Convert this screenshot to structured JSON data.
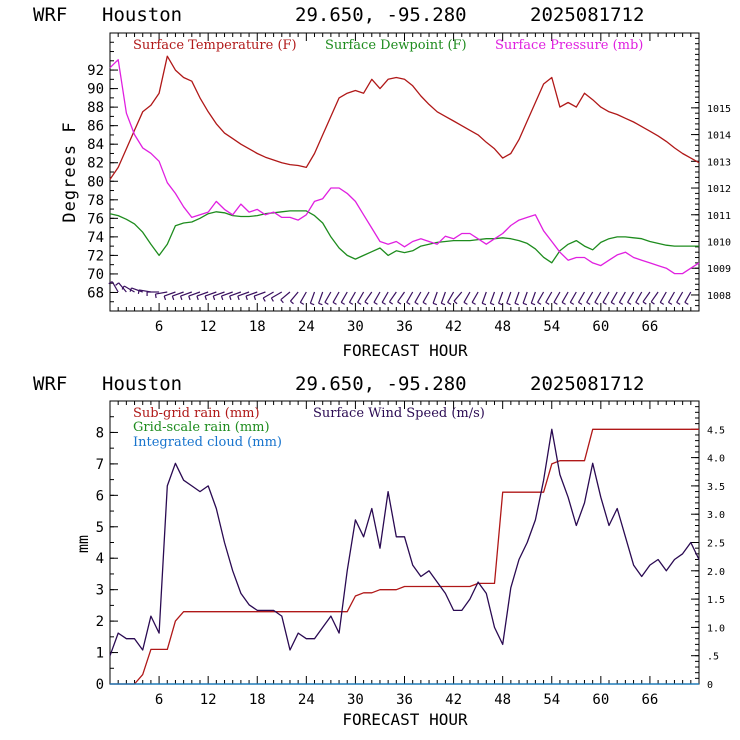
{
  "header": {
    "model": "WRF",
    "location": "Houston",
    "coords": "29.650, -95.280",
    "run": "2025081712"
  },
  "colors": {
    "temperature": "#b01818",
    "dewpoint": "#1e8c1e",
    "pressure": "#e020e0",
    "subgrid_rain": "#b01818",
    "grid_rain": "#1e8c1e",
    "cloud": "#1874cd",
    "wind_speed": "#2a0a52",
    "barb": "#3a1060"
  },
  "chart_data": [
    {
      "type": "line",
      "xlabel": "FORECAST HOUR",
      "ylabel": "Degrees F",
      "xlim": [
        0,
        72
      ],
      "ylim": [
        66,
        96
      ],
      "y2lim": [
        1007.4,
        1017.8
      ],
      "xticks": [
        "6",
        "12",
        "18",
        "24",
        "30",
        "36",
        "42",
        "48",
        "54",
        "60",
        "66"
      ],
      "yticks": [
        "68",
        "70",
        "72",
        "74",
        "76",
        "78",
        "80",
        "82",
        "84",
        "86",
        "88",
        "90",
        "92"
      ],
      "y2ticks": [
        "1008",
        "1009",
        "1010",
        "1011",
        "1012",
        "1013",
        "1014",
        "1015"
      ],
      "legend_placement": "top",
      "x": [
        0,
        1,
        2,
        3,
        4,
        5,
        6,
        7,
        8,
        9,
        10,
        11,
        12,
        13,
        14,
        15,
        16,
        17,
        18,
        19,
        20,
        21,
        22,
        23,
        24,
        25,
        26,
        27,
        28,
        29,
        30,
        31,
        32,
        33,
        34,
        35,
        36,
        37,
        38,
        39,
        40,
        41,
        42,
        43,
        44,
        45,
        46,
        47,
        48,
        49,
        50,
        51,
        52,
        53,
        54,
        55,
        56,
        57,
        58,
        59,
        60,
        61,
        62,
        63,
        64,
        65,
        66,
        67,
        68,
        69,
        70,
        71,
        72
      ],
      "series": [
        {
          "name": "Surface Temperature (F)",
          "axis": "left",
          "values": [
            80.2,
            81.5,
            83.5,
            85.5,
            87.5,
            88.2,
            89.5,
            93.5,
            92.0,
            91.2,
            90.8,
            89.0,
            87.5,
            86.2,
            85.2,
            84.6,
            84.0,
            83.5,
            83.0,
            82.6,
            82.3,
            82.0,
            81.8,
            81.7,
            81.5,
            83.0,
            85.0,
            87.0,
            89.0,
            89.5,
            89.8,
            89.5,
            91.0,
            90.0,
            91.0,
            91.2,
            91.0,
            90.3,
            89.2,
            88.3,
            87.5,
            87.0,
            86.5,
            86.0,
            85.5,
            85.0,
            84.2,
            83.5,
            82.5,
            83.0,
            84.5,
            86.5,
            88.5,
            90.5,
            91.2,
            88.0,
            88.5,
            88.0,
            89.5,
            88.8,
            88.0,
            87.5,
            87.2,
            86.8,
            86.4,
            85.9,
            85.4,
            84.9,
            84.3,
            83.6,
            83.0,
            82.5,
            82.0
          ]
        },
        {
          "name": "Surface Dewpoint (F)",
          "axis": "left",
          "values": [
            76.5,
            76.3,
            75.9,
            75.4,
            74.5,
            73.2,
            72.0,
            73.2,
            75.2,
            75.5,
            75.6,
            76.0,
            76.5,
            76.7,
            76.6,
            76.3,
            76.2,
            76.2,
            76.3,
            76.5,
            76.6,
            76.7,
            76.8,
            76.8,
            76.8,
            76.3,
            75.5,
            74.0,
            72.8,
            72.0,
            71.6,
            72.0,
            72.4,
            72.8,
            72.0,
            72.5,
            72.3,
            72.5,
            73.0,
            73.2,
            73.4,
            73.5,
            73.6,
            73.6,
            73.6,
            73.7,
            73.8,
            73.8,
            73.9,
            73.8,
            73.6,
            73.3,
            72.7,
            71.8,
            71.2,
            72.5,
            73.2,
            73.6,
            73.0,
            72.6,
            73.4,
            73.8,
            74.0,
            74.0,
            73.9,
            73.8,
            73.5,
            73.3,
            73.1,
            73.0,
            73.0,
            73.0,
            73.0
          ]
        },
        {
          "name": "Surface Pressure (mb)",
          "axis": "right",
          "values": [
            1016.5,
            1016.8,
            1014.8,
            1014.0,
            1013.5,
            1013.3,
            1013.0,
            1012.2,
            1011.8,
            1011.3,
            1010.9,
            1011.0,
            1011.1,
            1011.5,
            1011.2,
            1011.0,
            1011.4,
            1011.1,
            1011.2,
            1011.0,
            1011.1,
            1010.9,
            1010.9,
            1010.8,
            1011.0,
            1011.5,
            1011.6,
            1012.0,
            1012.0,
            1011.8,
            1011.5,
            1011.0,
            1010.5,
            1010.0,
            1009.9,
            1010.0,
            1009.8,
            1010.0,
            1010.1,
            1010.0,
            1009.9,
            1010.2,
            1010.1,
            1010.3,
            1010.3,
            1010.1,
            1009.9,
            1010.1,
            1010.3,
            1010.6,
            1010.8,
            1010.9,
            1011.0,
            1010.4,
            1010.0,
            1009.6,
            1009.3,
            1009.4,
            1009.4,
            1009.2,
            1009.1,
            1009.3,
            1009.5,
            1009.6,
            1009.4,
            1009.3,
            1009.2,
            1009.1,
            1009.0,
            1008.8,
            1008.8,
            1009.0,
            1009.2
          ]
        }
      ],
      "wind_barb_directions_deg": [
        340,
        330,
        320,
        300,
        290,
        280,
        270,
        260,
        250,
        250,
        250,
        250,
        250,
        250,
        250,
        250,
        250,
        250,
        250,
        250,
        240,
        240,
        230,
        220,
        210,
        200,
        200,
        210,
        210,
        210,
        210,
        210,
        215,
        210,
        210,
        215,
        215,
        210,
        210,
        210,
        200,
        200,
        210,
        220,
        210,
        210,
        200,
        200,
        200,
        200,
        200,
        200,
        200,
        210,
        210,
        210,
        210,
        210,
        210,
        210,
        210,
        210,
        210,
        210,
        210,
        210,
        215,
        215,
        210,
        210,
        210,
        210,
        210
      ]
    },
    {
      "type": "line",
      "xlabel": "FORECAST HOUR",
      "ylabel": "mm",
      "xlim": [
        0,
        72
      ],
      "ylim": [
        0,
        9.0
      ],
      "y2lim": [
        0,
        5.0
      ],
      "xticks": [
        "6",
        "12",
        "18",
        "24",
        "30",
        "36",
        "42",
        "48",
        "54",
        "60",
        "66"
      ],
      "yticks": [
        "0",
        "1",
        "2",
        "3",
        "4",
        "5",
        "6",
        "7",
        "8"
      ],
      "y2ticks": [
        "0",
        ".5",
        "1.0",
        "1.5",
        "2.0",
        "2.5",
        "3.0",
        "3.5",
        "4.0",
        "4.5"
      ],
      "legend_placement": "top-left",
      "x": [
        0,
        1,
        2,
        3,
        4,
        5,
        6,
        7,
        8,
        9,
        10,
        11,
        12,
        13,
        14,
        15,
        16,
        17,
        18,
        19,
        20,
        21,
        22,
        23,
        24,
        25,
        26,
        27,
        28,
        29,
        30,
        31,
        32,
        33,
        34,
        35,
        36,
        37,
        38,
        39,
        40,
        41,
        42,
        43,
        44,
        45,
        46,
        47,
        48,
        49,
        50,
        51,
        52,
        53,
        54,
        55,
        56,
        57,
        58,
        59,
        60,
        61,
        62,
        63,
        64,
        65,
        66,
        67,
        68,
        69,
        70,
        71,
        72
      ],
      "series": [
        {
          "name": "Sub-grid rain (mm)",
          "axis": "left",
          "values": [
            0,
            0,
            0,
            0,
            0.3,
            1.1,
            1.1,
            1.1,
            2.0,
            2.3,
            2.3,
            2.3,
            2.3,
            2.3,
            2.3,
            2.3,
            2.3,
            2.3,
            2.3,
            2.3,
            2.3,
            2.3,
            2.3,
            2.3,
            2.3,
            2.3,
            2.3,
            2.3,
            2.3,
            2.3,
            2.8,
            2.9,
            2.9,
            3.0,
            3.0,
            3.0,
            3.1,
            3.1,
            3.1,
            3.1,
            3.1,
            3.1,
            3.1,
            3.1,
            3.1,
            3.2,
            3.2,
            3.2,
            6.1,
            6.1,
            6.1,
            6.1,
            6.1,
            6.1,
            7.0,
            7.1,
            7.1,
            7.1,
            7.1,
            8.1,
            8.1,
            8.1,
            8.1,
            8.1,
            8.1,
            8.1,
            8.1,
            8.1,
            8.1,
            8.1,
            8.1,
            8.1,
            8.1
          ]
        },
        {
          "name": "Grid-scale rain (mm)",
          "axis": "left",
          "values": [
            0,
            0,
            0,
            0,
            0,
            0,
            0,
            0,
            0,
            0,
            0,
            0,
            0,
            0,
            0,
            0,
            0,
            0,
            0,
            0,
            0,
            0,
            0,
            0,
            0,
            0,
            0,
            0,
            0,
            0,
            0,
            0,
            0,
            0,
            0,
            0,
            0,
            0,
            0,
            0,
            0,
            0,
            0,
            0,
            0,
            0,
            0,
            0,
            0,
            0,
            0,
            0,
            0,
            0,
            0,
            0,
            0,
            0,
            0,
            0,
            0,
            0,
            0,
            0,
            0,
            0,
            0,
            0,
            0,
            0,
            0,
            0,
            0
          ]
        },
        {
          "name": "Integrated cloud (mm)",
          "axis": "left",
          "values": [
            0,
            0,
            0,
            0,
            0,
            0,
            0,
            0,
            0,
            0,
            0,
            0,
            0,
            0,
            0,
            0,
            0,
            0,
            0,
            0,
            0,
            0,
            0,
            0,
            0,
            0,
            0,
            0,
            0,
            0,
            0,
            0,
            0,
            0,
            0,
            0,
            0,
            0,
            0,
            0,
            0,
            0,
            0,
            0,
            0,
            0,
            0,
            0,
            0,
            0,
            0,
            0,
            0,
            0,
            0,
            0,
            0,
            0,
            0,
            0,
            0,
            0,
            0,
            0,
            0,
            0,
            0,
            0,
            0,
            0,
            0,
            0,
            0
          ]
        },
        {
          "name": "Surface Wind Speed (m/s)",
          "axis": "right",
          "values": [
            0.5,
            0.9,
            0.8,
            0.8,
            0.6,
            1.2,
            0.9,
            3.5,
            3.9,
            3.6,
            3.5,
            3.4,
            3.5,
            3.1,
            2.5,
            2.0,
            1.6,
            1.4,
            1.3,
            1.3,
            1.3,
            1.2,
            0.6,
            0.9,
            0.8,
            0.8,
            1.0,
            1.2,
            0.9,
            2.0,
            2.9,
            2.6,
            3.1,
            2.4,
            3.4,
            2.6,
            2.6,
            2.1,
            1.9,
            2.0,
            1.8,
            1.6,
            1.3,
            1.3,
            1.5,
            1.8,
            1.6,
            1.0,
            0.7,
            1.7,
            2.2,
            2.5,
            2.9,
            3.6,
            4.5,
            3.7,
            3.3,
            2.8,
            3.2,
            3.9,
            3.3,
            2.8,
            3.1,
            2.6,
            2.1,
            1.9,
            2.1,
            2.2,
            2.0,
            2.2,
            2.3,
            2.5,
            2.2
          ]
        }
      ]
    }
  ]
}
